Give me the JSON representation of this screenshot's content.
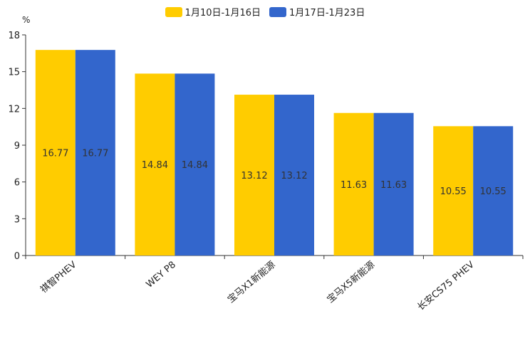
{
  "chart_data": {
    "type": "bar",
    "title": "",
    "ylabel": "%",
    "xlabel": "",
    "ylim": [
      0,
      18
    ],
    "yticks": [
      0,
      3,
      6,
      9,
      12,
      15,
      18
    ],
    "categories": [
      "祺智PHEV",
      "WEY P8",
      "宝马X1新能源",
      "宝马X5新能源",
      "长安CS75 PHEV"
    ],
    "series": [
      {
        "name": "1月10日-1月16日",
        "color": "#FFCC00",
        "values": [
          16.77,
          14.84,
          13.12,
          11.63,
          10.55
        ]
      },
      {
        "name": "1月17日-1月23日",
        "color": "#3366CC",
        "values": [
          16.77,
          14.84,
          13.12,
          11.63,
          10.55
        ]
      }
    ],
    "legend_position": "top"
  }
}
